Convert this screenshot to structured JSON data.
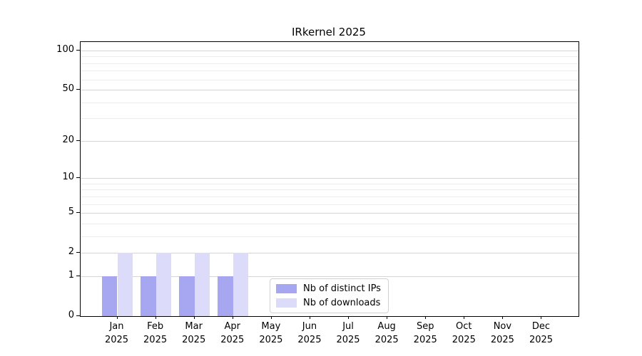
{
  "chart_data": {
    "type": "bar",
    "title": "IRkernel 2025",
    "categories": [
      "Jan",
      "Feb",
      "Mar",
      "Apr",
      "May",
      "Jun",
      "Jul",
      "Aug",
      "Sep",
      "Oct",
      "Nov",
      "Dec"
    ],
    "x_sublabel_year": "2025",
    "series": [
      {
        "name": "Nb of distinct IPs",
        "color": "#a6a6f1",
        "values": [
          1,
          1,
          1,
          1,
          0,
          0,
          0,
          0,
          0,
          0,
          0,
          0
        ]
      },
      {
        "name": "Nb of downloads",
        "color": "#dcdcfa",
        "values": [
          2,
          2,
          2,
          2,
          0,
          0,
          0,
          0,
          0,
          0,
          0,
          0
        ]
      }
    ],
    "yscale": "log(1+y)",
    "ylim": [
      0,
      116
    ],
    "y_major_ticks": [
      0,
      1,
      2,
      5,
      10,
      20,
      50,
      100
    ],
    "y_minor_gridlines": [
      3,
      4,
      6,
      7,
      8,
      9,
      30,
      40,
      60,
      70,
      80,
      90
    ],
    "grid": "on",
    "grid_major_color": "#d4d4d4",
    "grid_minor_color": "#ececec",
    "legend_position": "lower center inside plot",
    "bar_width_fraction": 0.4
  },
  "legend": {
    "items": [
      {
        "label": "Nb of distinct IPs"
      },
      {
        "label": "Nb of downloads"
      }
    ]
  }
}
